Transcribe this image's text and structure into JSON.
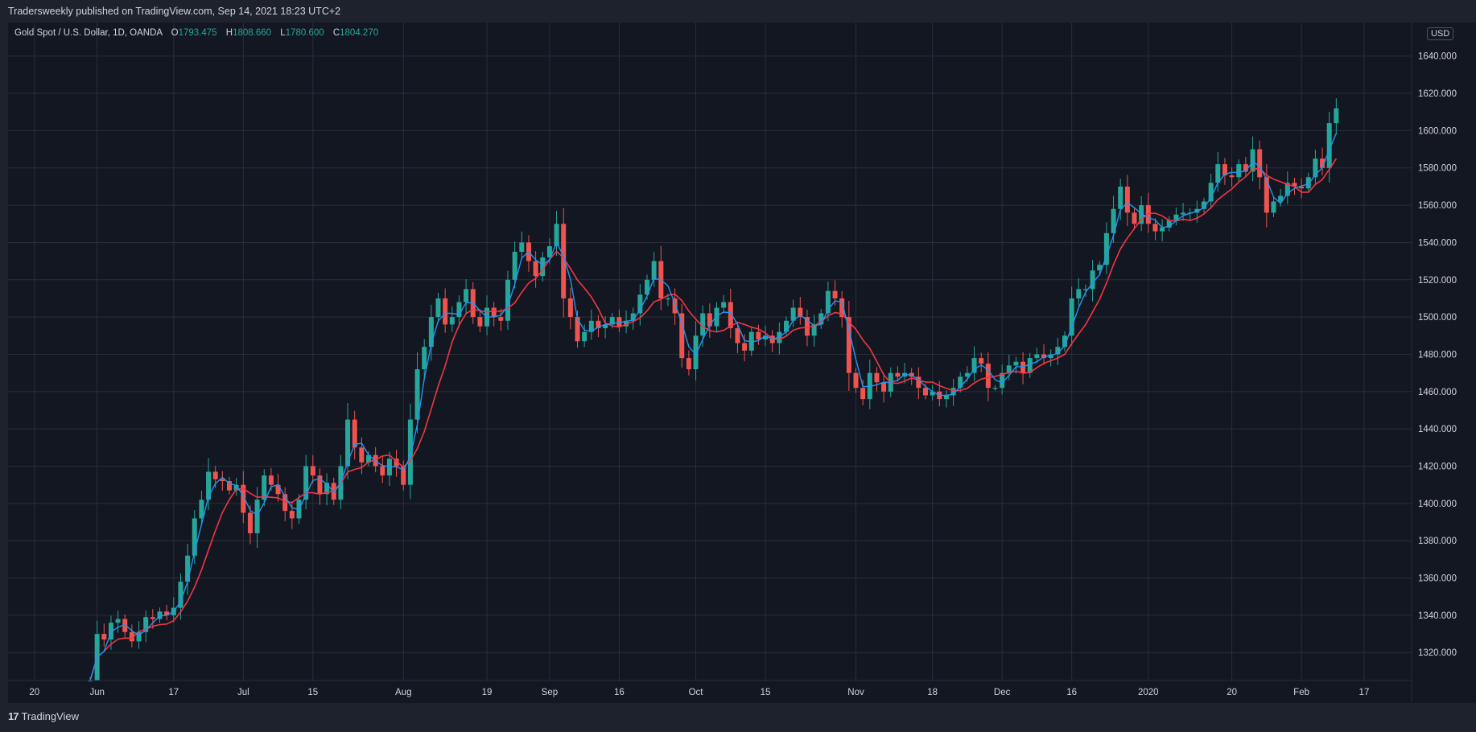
{
  "header": {
    "publish_text": "Tradersweekly published on TradingView.com, Sep 14, 2021 18:23 UTC+2"
  },
  "legend": {
    "symbol": "Gold Spot / U.S. Dollar, 1D, OANDA",
    "o_label": "O",
    "o_value": "1793.475",
    "h_label": "H",
    "h_value": "1808.660",
    "l_label": "L",
    "l_value": "1780.600",
    "c_label": "C",
    "c_value": "1804.270"
  },
  "price_axis": {
    "currency_badge": "USD"
  },
  "footer": {
    "brand": "TradingView",
    "logo_glyph": "17"
  },
  "colors": {
    "background": "#131722",
    "frame": "#1e222d",
    "grid": "#2a2e39",
    "up": "#26a69a",
    "down": "#ef5350",
    "ma_fast": "#2196f3",
    "ma_slow": "#f23645"
  },
  "chart_data": {
    "type": "candlestick",
    "title": "Gold Spot / U.S. Dollar, 1D, OANDA",
    "currency": "USD",
    "y_ticks": [
      1320,
      1340,
      1360,
      1380,
      1400,
      1420,
      1440,
      1460,
      1480,
      1500,
      1520,
      1540,
      1560,
      1580,
      1600,
      1620,
      1640
    ],
    "y_tick_labels": [
      "1320.000",
      "1340.000",
      "1360.000",
      "1380.000",
      "1400.000",
      "1420.000",
      "1440.000",
      "1460.000",
      "1480.000",
      "1500.000",
      "1520.000",
      "1540.000",
      "1560.000",
      "1580.000",
      "1600.000",
      "1620.000",
      "1640.000"
    ],
    "ylim": [
      1305,
      1658
    ],
    "x_ticks": [
      {
        "label": "20",
        "index": -8
      },
      {
        "label": "Jun",
        "index": 1
      },
      {
        "label": "17",
        "index": 12
      },
      {
        "label": "Jul",
        "index": 22
      },
      {
        "label": "15",
        "index": 32
      },
      {
        "label": "Aug",
        "index": 45
      },
      {
        "label": "19",
        "index": 57
      },
      {
        "label": "Sep",
        "index": 66
      },
      {
        "label": "16",
        "index": 76
      },
      {
        "label": "Oct",
        "index": 87
      },
      {
        "label": "15",
        "index": 97
      },
      {
        "label": "Nov",
        "index": 110
      },
      {
        "label": "18",
        "index": 121
      },
      {
        "label": "Dec",
        "index": 131
      },
      {
        "label": "16",
        "index": 141
      },
      {
        "label": "2020",
        "index": 152
      },
      {
        "label": "20",
        "index": 164
      },
      {
        "label": "Feb",
        "index": 174
      },
      {
        "label": "17",
        "index": 183
      }
    ],
    "close": [
      1305,
      1330,
      1327,
      1336,
      1338,
      1331,
      1326,
      1331,
      1339,
      1338,
      1342,
      1340,
      1344,
      1358,
      1372,
      1392,
      1402,
      1417,
      1413,
      1412,
      1407,
      1410,
      1395,
      1384,
      1402,
      1415,
      1410,
      1405,
      1396,
      1392,
      1402,
      1420,
      1415,
      1405,
      1411,
      1402,
      1420,
      1445,
      1430,
      1422,
      1426,
      1420,
      1415,
      1424,
      1420,
      1410,
      1445,
      1472,
      1484,
      1500,
      1510,
      1496,
      1500,
      1508,
      1515,
      1500,
      1495,
      1505,
      1500,
      1498,
      1520,
      1535,
      1540,
      1530,
      1522,
      1532,
      1538,
      1550,
      1510,
      1500,
      1487,
      1492,
      1498,
      1494,
      1496,
      1500,
      1495,
      1498,
      1502,
      1512,
      1520,
      1530,
      1510,
      1510,
      1502,
      1478,
      1472,
      1490,
      1502,
      1495,
      1505,
      1508,
      1494,
      1486,
      1482,
      1492,
      1488,
      1490,
      1486,
      1492,
      1498,
      1505,
      1500,
      1490,
      1496,
      1502,
      1514,
      1510,
      1500,
      1470,
      1462,
      1456,
      1470,
      1465,
      1460,
      1470,
      1468,
      1470,
      1468,
      1462,
      1458,
      1460,
      1456,
      1458,
      1462,
      1468,
      1470,
      1478,
      1475,
      1462,
      1462,
      1470,
      1474,
      1476,
      1470,
      1478,
      1480,
      1478,
      1480,
      1484,
      1490,
      1510,
      1515,
      1515,
      1525,
      1528,
      1545,
      1558,
      1570,
      1556,
      1550,
      1560,
      1550,
      1546,
      1548,
      1552,
      1555,
      1556,
      1556,
      1558,
      1562,
      1572,
      1582,
      1576,
      1575,
      1582,
      1578,
      1590,
      1575,
      1556,
      1562,
      1565,
      1572,
      1570,
      1569,
      1575,
      1585,
      1580,
      1604,
      1612
    ],
    "bar_count": 186,
    "ma_fast_period": 3,
    "ma_slow_period": 7
  }
}
